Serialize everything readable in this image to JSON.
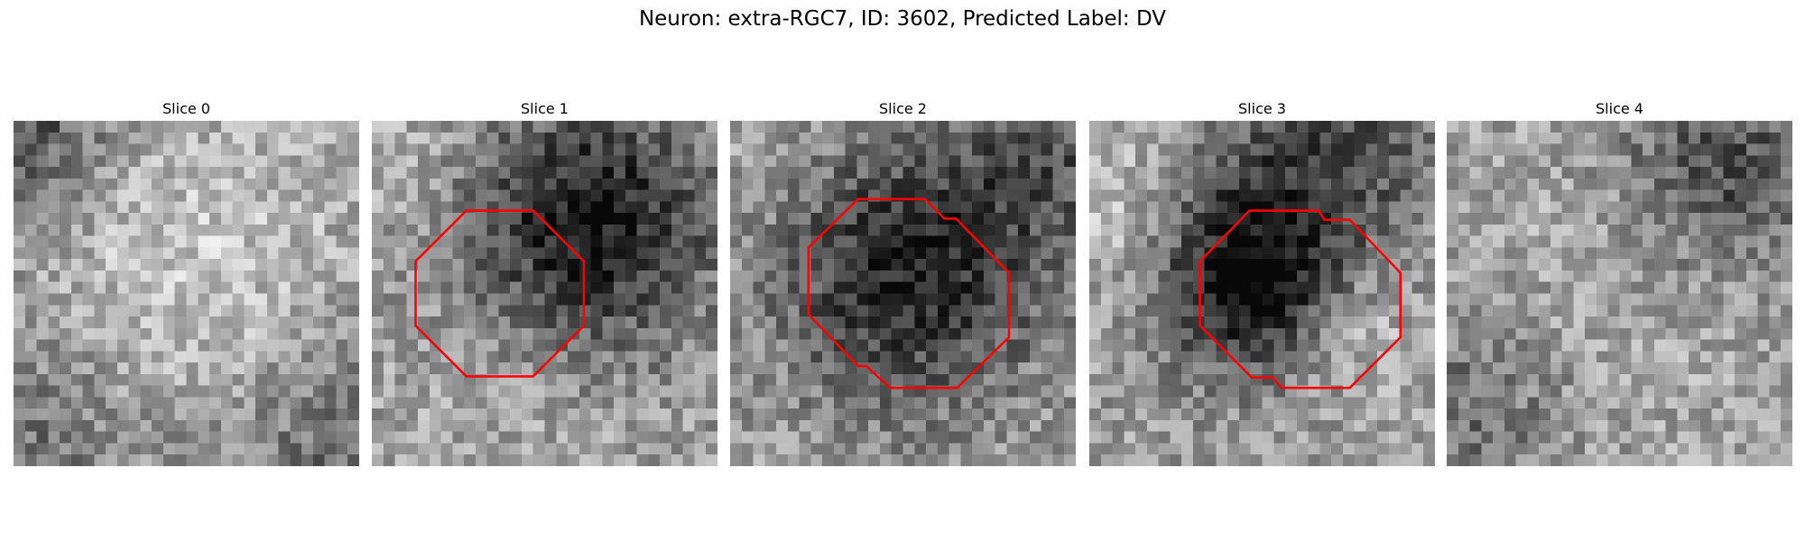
{
  "title": "Neuron: extra-RGC7, ID: 3602, Predicted Label: DV",
  "panels": [
    {
      "title": "Slice 0"
    },
    {
      "title": "Slice 1"
    },
    {
      "title": "Slice 2"
    },
    {
      "title": "Slice 3"
    },
    {
      "title": "Slice 4"
    }
  ]
}
